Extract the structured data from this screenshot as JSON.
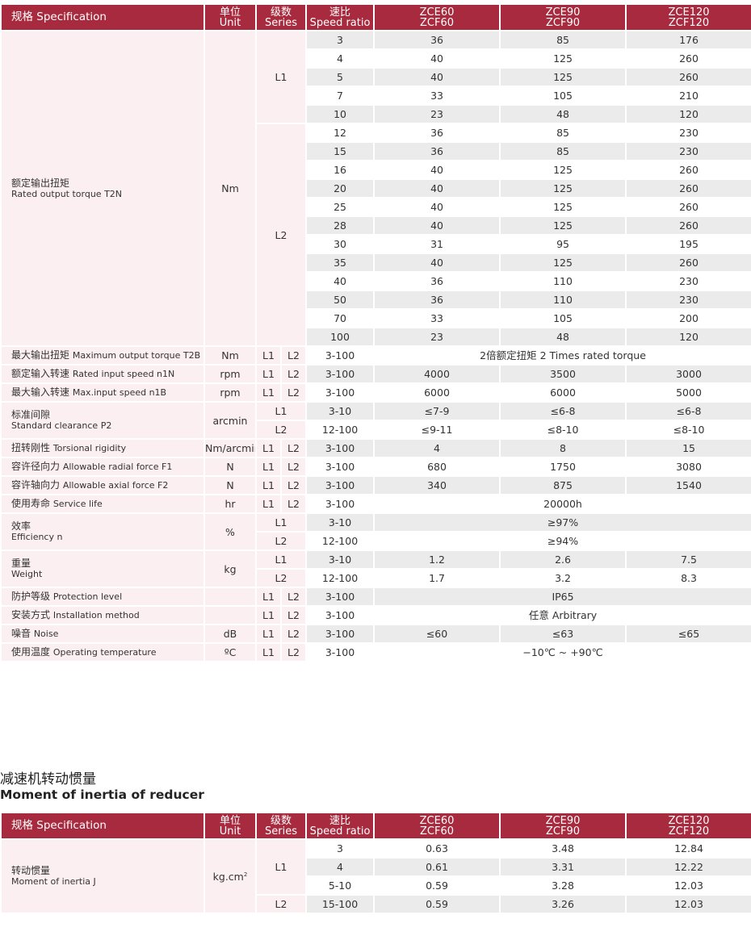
{
  "header": {
    "spec": "规格 Specification",
    "unit_cn": "单位",
    "unit_en": "Unit",
    "series_cn": "级数",
    "series_en": "Series",
    "ratio_cn": "速比",
    "ratio_en": "Speed ratio",
    "models": [
      [
        "ZCE60",
        "ZCF60"
      ],
      [
        "ZCE90",
        "ZCF90"
      ],
      [
        "ZCE120",
        "ZCF120"
      ]
    ]
  },
  "colors": {
    "header": "#a82a3e",
    "label_bg": "#fbeff1",
    "stripe": "#ebebeb"
  },
  "specs": [
    {
      "cn": "额定输出扭矩",
      "en": "Rated output torque T2N",
      "unit": "Nm",
      "multi": true,
      "subs": [
        {
          "series": "L1",
          "rows": [
            [
              "3",
              "36",
              "85",
              "176"
            ],
            [
              "4",
              "40",
              "125",
              "260"
            ],
            [
              "5",
              "40",
              "125",
              "260"
            ],
            [
              "7",
              "33",
              "105",
              "210"
            ],
            [
              "10",
              "23",
              "48",
              "120"
            ]
          ]
        },
        {
          "series": "L2",
          "rows": [
            [
              "12",
              "36",
              "85",
              "230"
            ],
            [
              "15",
              "36",
              "85",
              "230"
            ],
            [
              "16",
              "40",
              "125",
              "260"
            ],
            [
              "20",
              "40",
              "125",
              "260"
            ],
            [
              "25",
              "40",
              "125",
              "260"
            ],
            [
              "28",
              "40",
              "125",
              "260"
            ],
            [
              "30",
              "31",
              "95",
              "195"
            ],
            [
              "35",
              "40",
              "125",
              "260"
            ],
            [
              "40",
              "36",
              "110",
              "230"
            ],
            [
              "50",
              "36",
              "110",
              "230"
            ],
            [
              "70",
              "33",
              "105",
              "200"
            ],
            [
              "100",
              "23",
              "48",
              "120"
            ]
          ]
        }
      ]
    },
    {
      "cn": "最大输出扭矩",
      "en": "Maximum output torque T2B",
      "unit": "Nm",
      "subs": [
        {
          "series": "L1 L2",
          "rows": [
            [
              "3-100",
              "2倍额定扭矩 2 Times rated torque"
            ]
          ]
        }
      ]
    },
    {
      "cn": "额定输入转速",
      "en": "Rated input speed n1N",
      "unit": "rpm",
      "subs": [
        {
          "series": "L1 L2",
          "rows": [
            [
              "3-100",
              "4000",
              "3500",
              "3000"
            ]
          ]
        }
      ]
    },
    {
      "cn": "最大输入转速",
      "en": "Max.input speed n1B",
      "unit": "rpm",
      "subs": [
        {
          "series": "L1 L2",
          "rows": [
            [
              "3-100",
              "6000",
              "6000",
              "5000"
            ]
          ]
        }
      ]
    },
    {
      "cn": "标准间隙",
      "en": "Standard clearance P2",
      "unit": "arcmin",
      "multi": true,
      "subs": [
        {
          "series": "L1",
          "rows": [
            [
              "3-10",
              "≤7-9",
              "≤6-8",
              "≤6-8"
            ]
          ]
        },
        {
          "series": "L2",
          "rows": [
            [
              "12-100",
              "≤9-11",
              "≤8-10",
              "≤8-10"
            ]
          ]
        }
      ]
    },
    {
      "cn": "扭转刚性",
      "en": "Torsional rigidity",
      "unit": "Nm/arcmin",
      "subs": [
        {
          "series": "L1 L2",
          "rows": [
            [
              "3-100",
              "4",
              "8",
              "15"
            ]
          ]
        }
      ]
    },
    {
      "cn": "容许径向力",
      "en": "Allowable radial force F1",
      "unit": "N",
      "subs": [
        {
          "series": "L1 L2",
          "rows": [
            [
              "3-100",
              "680",
              "1750",
              "3080"
            ]
          ]
        }
      ]
    },
    {
      "cn": "容许轴向力",
      "en": "Allowable axial force F2",
      "unit": "N",
      "subs": [
        {
          "series": "L1 L2",
          "rows": [
            [
              "3-100",
              "340",
              "875",
              "1540"
            ]
          ]
        }
      ]
    },
    {
      "cn": "使用寿命",
      "en": "Service life",
      "unit": "hr",
      "subs": [
        {
          "series": "L1 L2",
          "rows": [
            [
              "3-100",
              "20000h"
            ]
          ]
        }
      ]
    },
    {
      "cn": "效率",
      "en": "Efficiency n",
      "unit": "%",
      "subs": [
        {
          "series": "L1",
          "rows": [
            [
              "3-10",
              "≥97%"
            ]
          ]
        },
        {
          "series": "L2",
          "rows": [
            [
              "12-100",
              "≥94%"
            ]
          ]
        }
      ]
    },
    {
      "cn": "重量",
      "en": "Weight",
      "unit": "kg",
      "subs": [
        {
          "series": "L1",
          "rows": [
            [
              "3-10",
              "1.2",
              "2.6",
              "7.5"
            ]
          ]
        },
        {
          "series": "L2",
          "rows": [
            [
              "12-100",
              "1.7",
              "3.2",
              "8.3"
            ]
          ]
        }
      ]
    },
    {
      "cn": "防护等级",
      "en": "Protection level",
      "unit": "",
      "subs": [
        {
          "series": "L1 L2",
          "rows": [
            [
              "3-100",
              "IP65"
            ]
          ]
        }
      ]
    },
    {
      "cn": "安装方式",
      "en": "Installation method",
      "unit": "",
      "subs": [
        {
          "series": "L1 L2",
          "rows": [
            [
              "3-100",
              "任意 Arbitrary"
            ]
          ]
        }
      ]
    },
    {
      "cn": "噪音",
      "en": "Noise",
      "unit": "dB",
      "subs": [
        {
          "series": "L1 L2",
          "rows": [
            [
              "3-100",
              "≤60",
              "≤63",
              "≤65"
            ]
          ]
        }
      ]
    },
    {
      "cn": "使用温度",
      "en": "Operating temperature",
      "unit": "ºC",
      "subs": [
        {
          "series": "L1 L2",
          "rows": [
            [
              "3-100",
              "−10℃ ~ +90℃"
            ]
          ]
        }
      ]
    }
  ],
  "inertia": {
    "title_cn": "减速机转动惯量",
    "title_en": "Moment of inertia of reducer",
    "specs": [
      {
        "cn": "转动惯量",
        "en": "Moment of inertia J",
        "unit": "kg.cm",
        "unit_sup": "2",
        "multi": true,
        "subs": [
          {
            "series": "L1",
            "rows": [
              [
                "3",
                "0.63",
                "3.48",
                "12.84"
              ],
              [
                "4",
                "0.61",
                "3.31",
                "12.22"
              ],
              [
                "5-10",
                "0.59",
                "3.28",
                "12.03"
              ]
            ]
          },
          {
            "series": "L2",
            "rows": [
              [
                "15-100",
                "0.59",
                "3.26",
                "12.03"
              ]
            ]
          }
        ]
      }
    ]
  }
}
